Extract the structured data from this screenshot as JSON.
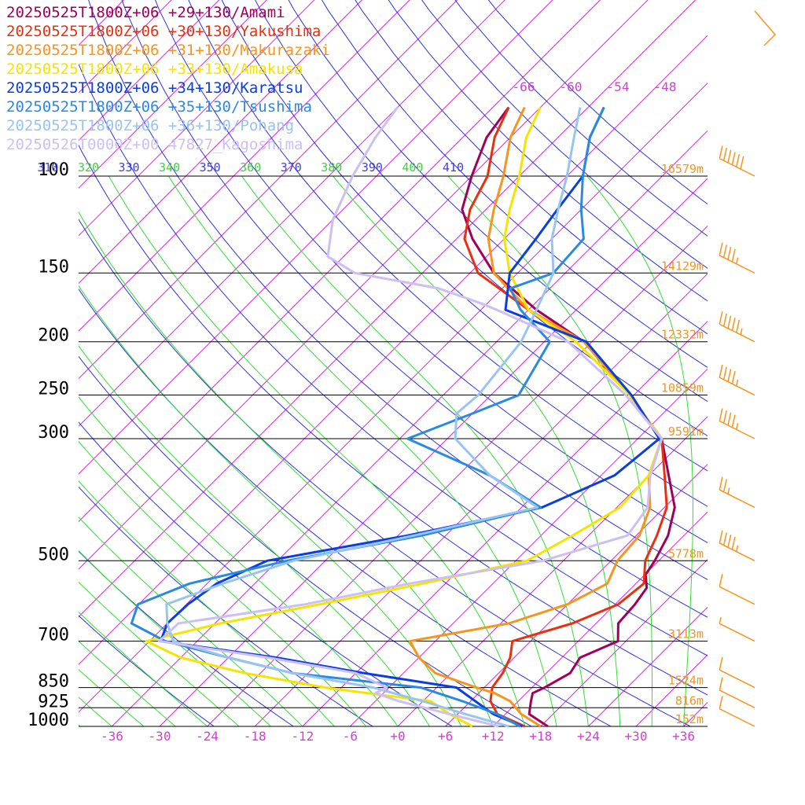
{
  "chart_data": {
    "type": "line",
    "chart_kind": "skew-T log-p sounding",
    "x_axis_unit": "degC",
    "y_axis_unit": "hPa",
    "pressure_levels": [
      100,
      150,
      200,
      250,
      300,
      500,
      700,
      850,
      925,
      1000
    ],
    "temperature_ticks": [
      "-36",
      "-30",
      "-24",
      "-18",
      "-12",
      "-6",
      "+0",
      "+6",
      "+12",
      "+18",
      "+24",
      "+30",
      "+36"
    ],
    "theta_labels": [
      "310",
      "320",
      "330",
      "340",
      "350",
      "360",
      "370",
      "380",
      "390",
      "400",
      "410"
    ],
    "isotherm_top_labels": [
      "-66",
      "-60",
      "-54",
      "-48"
    ],
    "height_labels": [
      {
        "p": 100,
        "label": "16579m"
      },
      {
        "p": 150,
        "label": "14129m"
      },
      {
        "p": 200,
        "label": "12332m"
      },
      {
        "p": 250,
        "label": "10859m"
      },
      {
        "p": 300,
        "label": "9591m"
      },
      {
        "p": 500,
        "label": "5778m"
      },
      {
        "p": 700,
        "label": "3113m"
      },
      {
        "p": 850,
        "label": "1524m"
      },
      {
        "p": 925,
        "label": "816m"
      },
      {
        "p": 1000,
        "label": "152m"
      }
    ],
    "ylim": [
      1000,
      50
    ],
    "series": [
      {
        "name": "20250525T1800Z+06 +29+130/Amami",
        "color": "#a0005a",
        "points": [
          [
            1000,
            18.9
          ],
          [
            950,
            15
          ],
          [
            900,
            13.6
          ],
          [
            870,
            12.8
          ],
          [
            850,
            13.6
          ],
          [
            800,
            15
          ],
          [
            750,
            14.3
          ],
          [
            700,
            17
          ],
          [
            650,
            14.8
          ],
          [
            600,
            14.5
          ],
          [
            560,
            13.9
          ],
          [
            530,
            12.1
          ],
          [
            500,
            11.5
          ],
          [
            450,
            10
          ],
          [
            400,
            7.3
          ],
          [
            300,
            -3
          ],
          [
            250,
            -12.5
          ],
          [
            200,
            -25
          ],
          [
            175,
            -35
          ],
          [
            150,
            -45
          ],
          [
            130,
            -52
          ],
          [
            115,
            -57
          ],
          [
            100,
            -60
          ],
          [
            85,
            -63
          ],
          [
            75,
            -64
          ]
        ]
      },
      {
        "name": "20250525T1800Z+06 +30+130/Yakushima",
        "color": "#e83010",
        "points": [
          [
            1000,
            16
          ],
          [
            950,
            11
          ],
          [
            900,
            8.5
          ],
          [
            850,
            7
          ],
          [
            800,
            6.5
          ],
          [
            750,
            5.5
          ],
          [
            700,
            3.7
          ],
          [
            650,
            9
          ],
          [
            600,
            12.4
          ],
          [
            550,
            13
          ],
          [
            500,
            10.3
          ],
          [
            450,
            8.6
          ],
          [
            400,
            6.3
          ],
          [
            350,
            2
          ],
          [
            300,
            -3
          ],
          [
            250,
            -12.5
          ],
          [
            200,
            -25
          ],
          [
            175,
            -36
          ],
          [
            150,
            -47
          ],
          [
            130,
            -53
          ],
          [
            115,
            -56
          ],
          [
            100,
            -58
          ],
          [
            85,
            -62
          ],
          [
            75,
            -64
          ]
        ]
      },
      {
        "name": "20250525T1800Z+06 +31+130/Makurazaki",
        "color": "#f7941d",
        "points": [
          [
            1000,
            18
          ],
          [
            950,
            14
          ],
          [
            900,
            11
          ],
          [
            870,
            8
          ],
          [
            850,
            5
          ],
          [
            800,
            -2
          ],
          [
            750,
            -6
          ],
          [
            700,
            -9.2
          ],
          [
            650,
            1
          ],
          [
            600,
            6
          ],
          [
            550,
            8.4
          ],
          [
            500,
            6.8
          ],
          [
            450,
            6.4
          ],
          [
            400,
            4.2
          ],
          [
            350,
            0
          ],
          [
            300,
            -3
          ],
          [
            250,
            -12.5
          ],
          [
            200,
            -25
          ],
          [
            175,
            -36
          ],
          [
            150,
            -45
          ],
          [
            130,
            -50
          ],
          [
            115,
            -53
          ],
          [
            100,
            -56
          ],
          [
            85,
            -60
          ],
          [
            75,
            -62
          ]
        ]
      },
      {
        "name": "20250525T1800Z+06 +33+130/Amakusa",
        "color": "#f5e400",
        "points": [
          [
            1000,
            9.4
          ],
          [
            950,
            5
          ],
          [
            900,
            1
          ],
          [
            870,
            -8
          ],
          [
            850,
            -14
          ],
          [
            800,
            -26
          ],
          [
            750,
            -36
          ],
          [
            700,
            -42.4
          ],
          [
            650,
            -35.3
          ],
          [
            600,
            -25.2
          ],
          [
            550,
            -14.8
          ],
          [
            500,
            -4.6
          ],
          [
            450,
            -2
          ],
          [
            400,
            0.4
          ],
          [
            350,
            0
          ],
          [
            300,
            -3
          ],
          [
            250,
            -12.5
          ],
          [
            200,
            -26
          ],
          [
            175,
            -36
          ],
          [
            150,
            -43
          ],
          [
            130,
            -48
          ],
          [
            115,
            -51
          ],
          [
            100,
            -54
          ],
          [
            85,
            -58
          ],
          [
            75,
            -60
          ]
        ]
      },
      {
        "name": "20250525T1800Z+06 +34+130/Karatsu",
        "color": "#0a3ee0",
        "points": [
          [
            1000,
            15.7
          ],
          [
            950,
            10.5
          ],
          [
            900,
            6.6
          ],
          [
            850,
            2.5
          ],
          [
            800,
            -11
          ],
          [
            750,
            -24
          ],
          [
            700,
            -40.6
          ],
          [
            650,
            -42
          ],
          [
            600,
            -41.8
          ],
          [
            550,
            -40.8
          ],
          [
            500,
            -37.3
          ],
          [
            450,
            -22.8
          ],
          [
            400,
            -9.4
          ],
          [
            350,
            -4.3
          ],
          [
            300,
            -3.3
          ],
          [
            250,
            -12.3
          ],
          [
            200,
            -24.7
          ],
          [
            175,
            -38.9
          ],
          [
            150,
            -43
          ],
          [
            130,
            -44
          ],
          [
            115,
            -45
          ],
          [
            100,
            -46
          ],
          [
            85,
            -50
          ],
          [
            75,
            -52
          ]
        ]
      },
      {
        "name": "20250525T1800Z+06 +35+130/Tsushima",
        "color": "#2a8ae0",
        "points": [
          [
            1000,
            15.4
          ],
          [
            950,
            11
          ],
          [
            900,
            5
          ],
          [
            850,
            -2
          ],
          [
            800,
            -20
          ],
          [
            750,
            -30
          ],
          [
            700,
            -40
          ],
          [
            650,
            -46.5
          ],
          [
            600,
            -48.1
          ],
          [
            550,
            -44.2
          ],
          [
            500,
            -34.8
          ],
          [
            450,
            -21
          ],
          [
            400,
            -9.6
          ],
          [
            350,
            -20
          ],
          [
            300,
            -35
          ],
          [
            270,
            -30
          ],
          [
            250,
            -26.5
          ],
          [
            200,
            -29.3
          ],
          [
            175,
            -37
          ],
          [
            160,
            -41
          ],
          [
            150,
            -37.5
          ],
          [
            130,
            -38
          ],
          [
            115,
            -42
          ],
          [
            100,
            -46
          ],
          [
            85,
            -50
          ],
          [
            75,
            -52
          ]
        ]
      },
      {
        "name": "20250525T1800Z+06 +36+130/Pohang",
        "color": "#98c4f0",
        "points": [
          [
            1000,
            14
          ],
          [
            950,
            7
          ],
          [
            900,
            0
          ],
          [
            850,
            -8
          ],
          [
            800,
            -20
          ],
          [
            750,
            -30
          ],
          [
            700,
            -39
          ],
          [
            650,
            -42
          ],
          [
            600,
            -44.5
          ],
          [
            550,
            -40
          ],
          [
            500,
            -34
          ],
          [
            450,
            -22
          ],
          [
            400,
            -10
          ],
          [
            350,
            -20
          ],
          [
            300,
            -29
          ],
          [
            270,
            -32
          ],
          [
            250,
            -31.6
          ],
          [
            200,
            -32.9
          ],
          [
            175,
            -35
          ],
          [
            150,
            -37.5
          ],
          [
            130,
            -42
          ],
          [
            115,
            -44.9
          ],
          [
            100,
            -48
          ],
          [
            85,
            -52
          ],
          [
            75,
            -55
          ]
        ]
      },
      {
        "name": "20250526T0000Z+00 47827_Kagoshima",
        "color": "#cdbff2",
        "points": [
          [
            1000,
            12.7
          ],
          [
            950,
            5
          ],
          [
            900,
            -3
          ],
          [
            870,
            -7
          ],
          [
            850,
            -6.3
          ],
          [
            800,
            -12
          ],
          [
            750,
            -25
          ],
          [
            700,
            -40.8
          ],
          [
            650,
            -40.6
          ],
          [
            600,
            -27
          ],
          [
            550,
            -16.5
          ],
          [
            500,
            -2.6
          ],
          [
            450,
            4.9
          ],
          [
            400,
            3.9
          ],
          [
            350,
            0.2
          ],
          [
            300,
            -3
          ],
          [
            250,
            -13
          ],
          [
            200,
            -27
          ],
          [
            175,
            -40
          ],
          [
            170,
            -43
          ],
          [
            160,
            -50
          ],
          [
            150,
            -62.5
          ],
          [
            140,
            -68
          ],
          [
            120,
            -72
          ],
          [
            100,
            -75
          ],
          [
            85,
            -77
          ],
          [
            75,
            -78
          ]
        ]
      }
    ],
    "wind_barbs": [
      {
        "p": 75,
        "barb": "pennant-10",
        "direction": "W"
      },
      {
        "p": 100,
        "barb": "60kt"
      },
      {
        "p": 150,
        "barb": "45kt"
      },
      {
        "p": 200,
        "barb": "55kt"
      },
      {
        "p": 250,
        "barb": "45kt"
      },
      {
        "p": 300,
        "barb": "45kt"
      },
      {
        "p": 400,
        "barb": "25kt"
      },
      {
        "p": 500,
        "barb": "45kt"
      },
      {
        "p": 600,
        "barb": "10kt"
      },
      {
        "p": 700,
        "barb": "5kt"
      },
      {
        "p": 850,
        "barb": "10kt"
      },
      {
        "p": 925,
        "barb": "10kt"
      },
      {
        "p": 1000,
        "barb": "10kt"
      }
    ],
    "colors": {
      "isotherm": "#e020e0",
      "dry_adiabat": "#3030e0",
      "moist_adiabat": "#30e030",
      "wind": "#f7941d",
      "height_label": "#f7941d",
      "tick_label": "#d040d0"
    }
  }
}
